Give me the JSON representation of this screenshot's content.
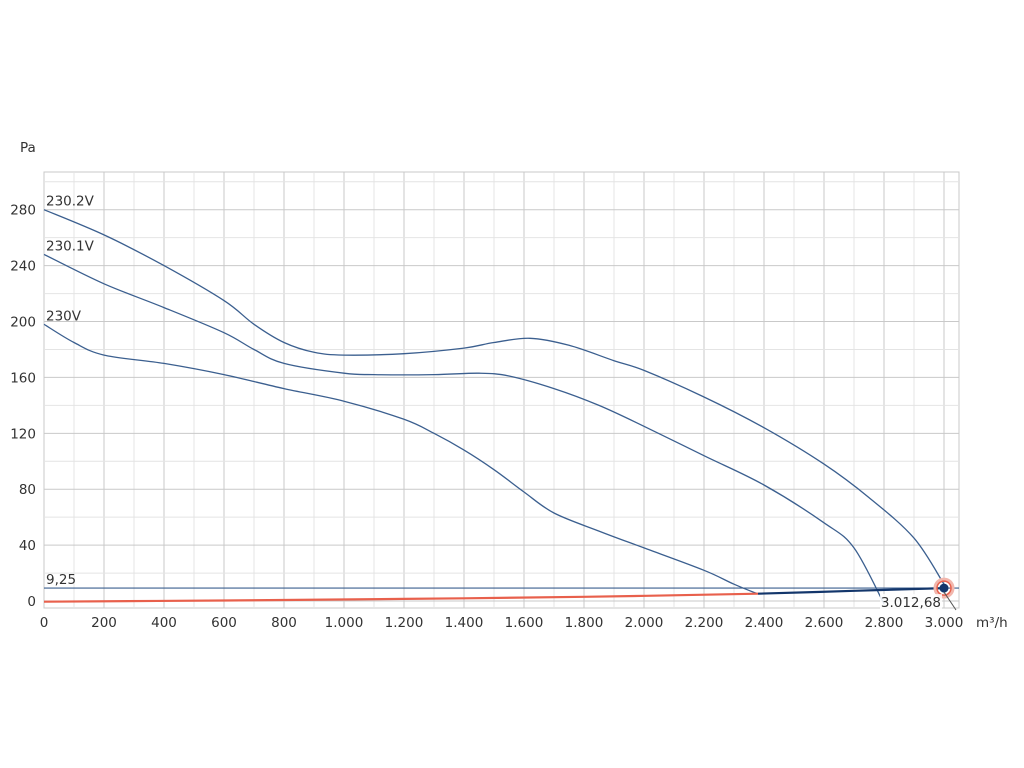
{
  "chart_data": {
    "type": "line",
    "title": "",
    "xlabel": "m³/h",
    "ylabel": "Pa",
    "xlim": [
      0,
      3050
    ],
    "ylim": [
      -5,
      307
    ],
    "x_ticks": [
      {
        "value": 0,
        "label": "0"
      },
      {
        "value": 200,
        "label": "200"
      },
      {
        "value": 400,
        "label": "400"
      },
      {
        "value": 600,
        "label": "600"
      },
      {
        "value": 800,
        "label": "800"
      },
      {
        "value": 1000,
        "label": "1.000"
      },
      {
        "value": 1200,
        "label": "1.200"
      },
      {
        "value": 1400,
        "label": "1.400"
      },
      {
        "value": 1600,
        "label": "1.600"
      },
      {
        "value": 1800,
        "label": "1.800"
      },
      {
        "value": 2000,
        "label": "2.000"
      },
      {
        "value": 2200,
        "label": "2.200"
      },
      {
        "value": 2400,
        "label": "2.400"
      },
      {
        "value": 2600,
        "label": "2.600"
      },
      {
        "value": 2800,
        "label": "2.800"
      },
      {
        "value": 3000,
        "label": "3.000"
      }
    ],
    "y_ticks": [
      {
        "value": 0,
        "label": "0"
      },
      {
        "value": 40,
        "label": "40"
      },
      {
        "value": 80,
        "label": "80"
      },
      {
        "value": 120,
        "label": "120"
      },
      {
        "value": 160,
        "label": "160"
      },
      {
        "value": 200,
        "label": "200"
      },
      {
        "value": 240,
        "label": "240"
      },
      {
        "value": 280,
        "label": "280"
      }
    ],
    "grid": true,
    "minor_grid": true,
    "series": [
      {
        "name": "230.2V",
        "color": "#3b5f8f",
        "points": [
          [
            0,
            280
          ],
          [
            200,
            262
          ],
          [
            400,
            240
          ],
          [
            600,
            215
          ],
          [
            700,
            198
          ],
          [
            800,
            185
          ],
          [
            900,
            178
          ],
          [
            1000,
            176
          ],
          [
            1200,
            177
          ],
          [
            1400,
            181
          ],
          [
            1500,
            185
          ],
          [
            1620,
            188
          ],
          [
            1750,
            183
          ],
          [
            1900,
            172
          ],
          [
            2000,
            165
          ],
          [
            2200,
            146
          ],
          [
            2400,
            124
          ],
          [
            2600,
            98
          ],
          [
            2750,
            74
          ],
          [
            2900,
            45
          ],
          [
            3000,
            12
          ]
        ]
      },
      {
        "name": "230.1V",
        "color": "#3b5f8f",
        "points": [
          [
            0,
            248
          ],
          [
            200,
            227
          ],
          [
            400,
            210
          ],
          [
            600,
            192
          ],
          [
            700,
            180
          ],
          [
            800,
            170
          ],
          [
            1000,
            163
          ],
          [
            1100,
            162
          ],
          [
            1300,
            162
          ],
          [
            1450,
            163
          ],
          [
            1550,
            161
          ],
          [
            1700,
            152
          ],
          [
            1850,
            140
          ],
          [
            2000,
            125
          ],
          [
            2200,
            104
          ],
          [
            2400,
            83
          ],
          [
            2600,
            56
          ],
          [
            2700,
            38
          ],
          [
            2800,
            -2
          ]
        ]
      },
      {
        "name": "230V",
        "color": "#3b5f8f",
        "points": [
          [
            0,
            198
          ],
          [
            100,
            185
          ],
          [
            200,
            176
          ],
          [
            400,
            170
          ],
          [
            600,
            162
          ],
          [
            800,
            152
          ],
          [
            1000,
            143
          ],
          [
            1200,
            130
          ],
          [
            1300,
            120
          ],
          [
            1400,
            108
          ],
          [
            1500,
            94
          ],
          [
            1600,
            78
          ],
          [
            1700,
            63
          ],
          [
            1850,
            50
          ],
          [
            2000,
            38
          ],
          [
            2200,
            22
          ],
          [
            2300,
            12
          ],
          [
            2380,
            5
          ]
        ]
      }
    ],
    "reference_line": {
      "label": "9,25",
      "y": 9.25,
      "color": "#3b5f8f"
    },
    "system_curve": {
      "color": "#e8604c",
      "points": [
        [
          0,
          -0.5
        ],
        [
          600,
          0.4
        ],
        [
          1200,
          1.5
        ],
        [
          1800,
          3.0
        ],
        [
          2380,
          5.2
        ]
      ]
    },
    "operating_line": {
      "color": "#13366b",
      "points": [
        [
          2380,
          5.2
        ],
        [
          2700,
          7.3
        ],
        [
          3000,
          9.25
        ]
      ]
    },
    "operating_point": {
      "x": 3000,
      "y": 9.25,
      "label": "3.012,68"
    }
  }
}
